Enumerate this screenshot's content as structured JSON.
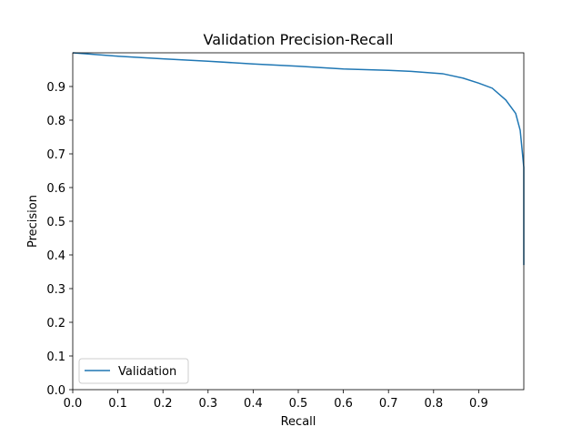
{
  "chart_data": {
    "type": "line",
    "title": "Validation Precision-Recall",
    "xlabel": "Recall",
    "ylabel": "Precision",
    "xlim": [
      0.0,
      1.0
    ],
    "ylim": [
      0.0,
      1.0
    ],
    "xticks": [
      0.0,
      0.1,
      0.2,
      0.3,
      0.4,
      0.5,
      0.6,
      0.7,
      0.8,
      0.9
    ],
    "xtick_labels": [
      "0.0",
      "0.1",
      "0.2",
      "0.3",
      "0.4",
      "0.5",
      "0.6",
      "0.7",
      "0.8",
      "0.9"
    ],
    "yticks": [
      0.0,
      0.1,
      0.2,
      0.3,
      0.4,
      0.5,
      0.6,
      0.7,
      0.8,
      0.9
    ],
    "ytick_labels": [
      "0.0",
      "0.1",
      "0.2",
      "0.3",
      "0.4",
      "0.5",
      "0.6",
      "0.7",
      "0.8",
      "0.9"
    ],
    "grid": false,
    "legend_position": "lower-left",
    "series": [
      {
        "name": "Validation",
        "color": "#1f77b4",
        "x": [
          0.0,
          0.1,
          0.2,
          0.3,
          0.4,
          0.5,
          0.6,
          0.7,
          0.75,
          0.82,
          0.865,
          0.9,
          0.93,
          0.96,
          0.982,
          0.992,
          1.0,
          1.0,
          1.0
        ],
        "y": [
          1.0,
          0.99,
          0.982,
          0.975,
          0.967,
          0.96,
          0.952,
          0.948,
          0.945,
          0.938,
          0.925,
          0.91,
          0.895,
          0.86,
          0.82,
          0.77,
          0.66,
          0.5,
          0.37
        ]
      }
    ]
  }
}
